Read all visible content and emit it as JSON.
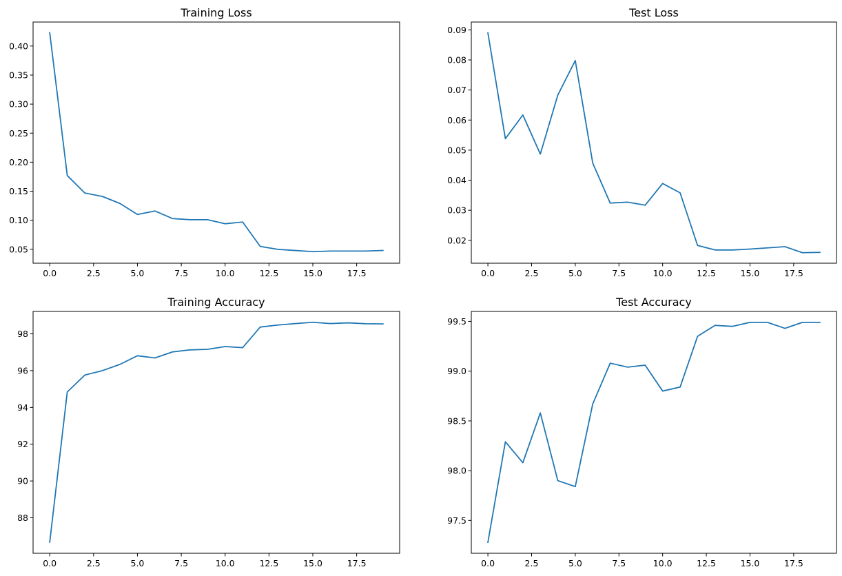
{
  "series_color": "#1f77b4",
  "chart_data": [
    {
      "type": "line",
      "title": "Training Loss",
      "xlabel": "",
      "ylabel": "",
      "xlim": [
        -0.95,
        19.95
      ],
      "ylim": [
        0.0261,
        0.4413
      ],
      "grid": false,
      "xticks": [
        0,
        2.5,
        5,
        7.5,
        10,
        12.5,
        15,
        17.5
      ],
      "xtick_labels": [
        "0.0",
        "2.5",
        "5.0",
        "7.5",
        "10.0",
        "12.5",
        "15.0",
        "17.5"
      ],
      "yticks": [
        0.05,
        0.1,
        0.15,
        0.2,
        0.25,
        0.3,
        0.35,
        0.4
      ],
      "ytick_labels": [
        "0.05",
        "0.10",
        "0.15",
        "0.20",
        "0.25",
        "0.30",
        "0.35",
        "0.40"
      ],
      "series": [
        {
          "x": [
            0,
            1,
            2,
            3,
            4,
            5,
            6,
            7,
            8,
            9,
            10,
            11,
            12,
            13,
            14,
            15,
            16,
            17,
            18,
            19
          ],
          "values": [
            0.423,
            0.177,
            0.147,
            0.141,
            0.129,
            0.11,
            0.116,
            0.103,
            0.101,
            0.101,
            0.094,
            0.097,
            0.055,
            0.05,
            0.048,
            0.046,
            0.047,
            0.047,
            0.047,
            0.048
          ]
        }
      ]
    },
    {
      "type": "line",
      "title": "Test Loss",
      "xlabel": "",
      "ylabel": "",
      "xlim": [
        -0.95,
        19.95
      ],
      "ylim": [
        0.0124,
        0.0926
      ],
      "grid": false,
      "xticks": [
        0,
        2.5,
        5,
        7.5,
        10,
        12.5,
        15,
        17.5
      ],
      "xtick_labels": [
        "0.0",
        "2.5",
        "5.0",
        "7.5",
        "10.0",
        "12.5",
        "15.0",
        "17.5"
      ],
      "yticks": [
        0.02,
        0.03,
        0.04,
        0.05,
        0.06,
        0.07,
        0.08,
        0.09
      ],
      "ytick_labels": [
        "0.02",
        "0.03",
        "0.04",
        "0.05",
        "0.06",
        "0.07",
        "0.08",
        "0.09"
      ],
      "series": [
        {
          "x": [
            0,
            1,
            2,
            3,
            4,
            5,
            6,
            7,
            8,
            9,
            10,
            11,
            12,
            13,
            14,
            15,
            16,
            17,
            18,
            19
          ],
          "values": [
            0.089,
            0.0538,
            0.0617,
            0.0487,
            0.0683,
            0.0798,
            0.0457,
            0.0324,
            0.0327,
            0.0317,
            0.0389,
            0.0358,
            0.0183,
            0.0168,
            0.0168,
            0.0171,
            0.0175,
            0.0179,
            0.0159,
            0.016
          ]
        }
      ]
    },
    {
      "type": "line",
      "title": "Training Accuracy",
      "xlabel": "",
      "ylabel": "",
      "xlim": [
        -0.95,
        19.95
      ],
      "ylim": [
        86.07,
        99.22
      ],
      "grid": false,
      "xticks": [
        0,
        2.5,
        5,
        7.5,
        10,
        12.5,
        15,
        17.5
      ],
      "xtick_labels": [
        "0.0",
        "2.5",
        "5.0",
        "7.5",
        "10.0",
        "12.5",
        "15.0",
        "17.5"
      ],
      "yticks": [
        88,
        90,
        92,
        94,
        96,
        98
      ],
      "ytick_labels": [
        "88",
        "90",
        "92",
        "94",
        "96",
        "98"
      ],
      "series": [
        {
          "x": [
            0,
            1,
            2,
            3,
            4,
            5,
            6,
            7,
            8,
            9,
            10,
            11,
            12,
            13,
            14,
            15,
            16,
            17,
            18,
            19
          ],
          "values": [
            86.67,
            94.84,
            95.76,
            96.0,
            96.34,
            96.81,
            96.69,
            97.02,
            97.13,
            97.16,
            97.31,
            97.25,
            98.37,
            98.48,
            98.56,
            98.63,
            98.56,
            98.6,
            98.55,
            98.54
          ]
        }
      ]
    },
    {
      "type": "line",
      "title": "Test Accuracy",
      "xlabel": "",
      "ylabel": "",
      "xlim": [
        -0.95,
        19.95
      ],
      "ylim": [
        97.17,
        99.6
      ],
      "grid": false,
      "xticks": [
        0,
        2.5,
        5,
        7.5,
        10,
        12.5,
        15,
        17.5
      ],
      "xtick_labels": [
        "0.0",
        "2.5",
        "5.0",
        "7.5",
        "10.0",
        "12.5",
        "15.0",
        "17.5"
      ],
      "yticks": [
        97.5,
        98.0,
        98.5,
        99.0,
        99.5
      ],
      "ytick_labels": [
        "97.5",
        "98.0",
        "98.5",
        "99.0",
        "99.5"
      ],
      "series": [
        {
          "x": [
            0,
            1,
            2,
            3,
            4,
            5,
            6,
            7,
            8,
            9,
            10,
            11,
            12,
            13,
            14,
            15,
            16,
            17,
            18,
            19
          ],
          "values": [
            97.28,
            98.29,
            98.08,
            98.58,
            97.9,
            97.84,
            98.67,
            99.08,
            99.04,
            99.06,
            98.8,
            98.84,
            99.35,
            99.46,
            99.45,
            99.49,
            99.49,
            99.43,
            99.49,
            99.49
          ]
        }
      ]
    }
  ]
}
